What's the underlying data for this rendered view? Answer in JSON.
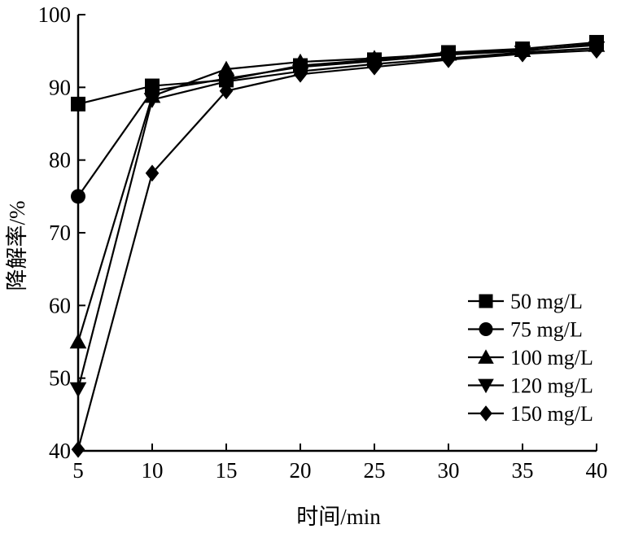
{
  "chart_data": {
    "type": "line",
    "title": "",
    "xlabel": "时间/min",
    "ylabel": "降解率/%",
    "x": [
      5,
      10,
      15,
      20,
      25,
      30,
      35,
      40
    ],
    "xlim": [
      5,
      40
    ],
    "ylim": [
      40,
      100
    ],
    "xticks": [
      "5",
      "10",
      "15",
      "20",
      "25",
      "30",
      "35",
      "40"
    ],
    "yticks": [
      "40",
      "50",
      "60",
      "70",
      "80",
      "90",
      "100"
    ],
    "grid": false,
    "legend_position": "bottom-right",
    "series": [
      {
        "name": "50 mg/L",
        "marker": "square",
        "values": [
          87.7,
          90.2,
          91.0,
          93.0,
          93.8,
          94.8,
          95.3,
          96.2
        ]
      },
      {
        "name": "75 mg/L",
        "marker": "circle",
        "values": [
          75.0,
          89.5,
          91.2,
          92.8,
          93.6,
          94.5,
          95.0,
          96.0
        ]
      },
      {
        "name": "100 mg/L",
        "marker": "triangle-up",
        "values": [
          55.0,
          88.8,
          92.5,
          93.5,
          94.0,
          94.6,
          95.1,
          95.8
        ]
      },
      {
        "name": "120 mg/L",
        "marker": "triangle-down",
        "values": [
          48.5,
          88.3,
          90.8,
          92.2,
          93.2,
          94.0,
          94.8,
          95.4
        ]
      },
      {
        "name": "150 mg/L",
        "marker": "diamond",
        "values": [
          40.2,
          78.2,
          89.5,
          91.8,
          92.8,
          93.8,
          94.6,
          95.1
        ]
      }
    ],
    "series_color": "#000000"
  }
}
